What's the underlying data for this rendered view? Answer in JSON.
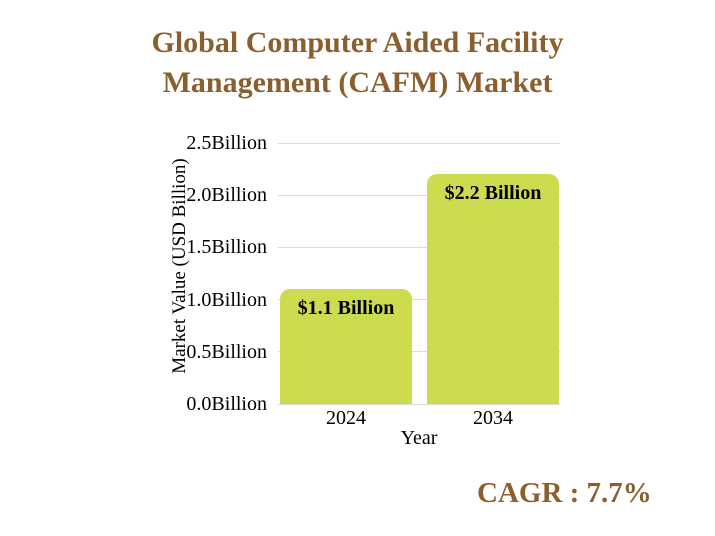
{
  "title": {
    "line1": "Global Computer Aided Facility",
    "line2": "Management (CAFM) Market",
    "color": "#8B5E2E"
  },
  "footer": {
    "cagr_label": "CAGR : 7.7%",
    "color": "#8B5E2E"
  },
  "chart_data": {
    "type": "bar",
    "title": "Global Computer Aided Facility Management (CAFM) Market",
    "categories": [
      "2024",
      "2034"
    ],
    "values": [
      1.1,
      2.2
    ],
    "bar_labels": [
      "$1.1 Billion",
      "$2.2 Billion"
    ],
    "xlabel": "Year",
    "ylabel": "Market Value (USD Billion)",
    "ylim": [
      0,
      2.5
    ],
    "yticks": [
      0,
      0.5,
      1,
      1.5,
      2,
      2.5
    ],
    "ytick_labels": [
      "0.0Billion",
      "0.5Billion",
      "1.0Billion",
      "1.5Billion",
      "2.0Billion",
      "2.5Billion"
    ],
    "grid": true,
    "legend": false,
    "bar_color": "#CDDC4E",
    "grid_color": "#DCDCDC",
    "bar_label_color": "#000000",
    "annotation": "CAGR : 7.7%"
  }
}
